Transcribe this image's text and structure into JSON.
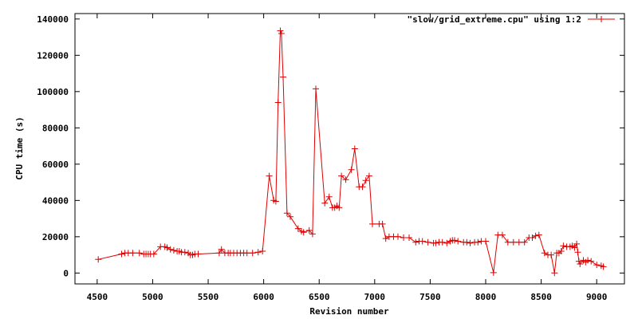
{
  "chart_data": {
    "type": "line",
    "title": "",
    "xlabel": "Revision number",
    "ylabel": "CPU time (s)",
    "xlim": [
      4300,
      9250
    ],
    "ylim": [
      -6000,
      143000
    ],
    "x_ticks": [
      4500,
      5000,
      5500,
      6000,
      6500,
      7000,
      7500,
      8000,
      8500,
      9000
    ],
    "y_ticks": [
      0,
      20000,
      40000,
      60000,
      80000,
      100000,
      120000,
      140000
    ],
    "grid": false,
    "legend_position": "top-right",
    "series": [
      {
        "name": "\"slow/grid_extreme.cpu\" using 1:2",
        "color": "#e00000",
        "marker": "plus",
        "x": [
          4510,
          4720,
          4750,
          4780,
          4820,
          4880,
          4920,
          4940,
          4960,
          4980,
          5010,
          5070,
          5110,
          5130,
          5160,
          5190,
          5220,
          5240,
          5260,
          5290,
          5320,
          5340,
          5360,
          5380,
          5410,
          5600,
          5620,
          5650,
          5680,
          5700,
          5730,
          5760,
          5790,
          5820,
          5850,
          5900,
          5950,
          5990,
          6050,
          6090,
          6110,
          6130,
          6150,
          6160,
          6175,
          6210,
          6240,
          6310,
          6340,
          6360,
          6410,
          6440,
          6470,
          6550,
          6590,
          6620,
          6640,
          6660,
          6680,
          6700,
          6740,
          6790,
          6820,
          6860,
          6890,
          6920,
          6950,
          6980,
          7040,
          7070,
          7100,
          7130,
          7170,
          7210,
          7260,
          7310,
          7370,
          7400,
          7430,
          7480,
          7530,
          7550,
          7580,
          7610,
          7650,
          7680,
          7700,
          7720,
          7750,
          7800,
          7830,
          7860,
          7900,
          7930,
          7960,
          8000,
          8070,
          8110,
          8150,
          8200,
          8250,
          8300,
          8350,
          8390,
          8420,
          8450,
          8480,
          8530,
          8560,
          8590,
          8620,
          8640,
          8660,
          8680,
          8700,
          8730,
          8760,
          8780,
          8800,
          8820,
          8830,
          8840,
          8850,
          8880,
          8900,
          8920,
          8950,
          9000,
          9040,
          9060
        ],
        "y": [
          7500,
          10500,
          11000,
          11000,
          11000,
          11000,
          10500,
          10500,
          10500,
          10500,
          10500,
          14500,
          14500,
          14000,
          13000,
          12500,
          12000,
          12000,
          11500,
          11500,
          11000,
          10000,
          10000,
          10500,
          10500,
          11000,
          13000,
          11000,
          11000,
          11000,
          11000,
          11000,
          11000,
          11000,
          11000,
          11000,
          11500,
          12000,
          53500,
          40000,
          39500,
          94000,
          133500,
          132000,
          108000,
          33000,
          31000,
          24500,
          23000,
          22500,
          23500,
          21500,
          101500,
          38500,
          42000,
          36000,
          36000,
          37000,
          36000,
          53500,
          51500,
          57000,
          68500,
          47500,
          47500,
          51000,
          53500,
          27000,
          27000,
          27000,
          19000,
          20000,
          20000,
          20000,
          19500,
          19500,
          17000,
          17500,
          17500,
          17000,
          16500,
          16500,
          17000,
          17000,
          16500,
          17500,
          18000,
          18000,
          17500,
          17000,
          17000,
          16500,
          17000,
          17000,
          17500,
          17500,
          200,
          21000,
          21000,
          17000,
          17000,
          17000,
          17000,
          19500,
          19500,
          20500,
          21000,
          11000,
          10000,
          10000,
          0,
          11000,
          11000,
          12000,
          15000,
          14500,
          14500,
          15000,
          14000,
          16000,
          11500,
          6500,
          5000,
          7000,
          6000,
          7000,
          6500,
          4500,
          4000,
          3500
        ]
      }
    ]
  }
}
